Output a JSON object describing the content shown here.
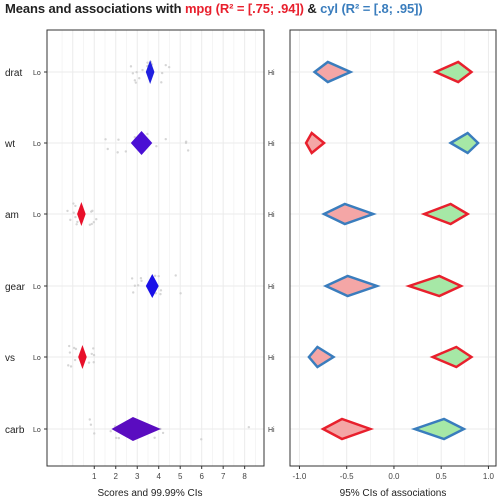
{
  "title": {
    "prefix": "Means and associations with ",
    "mpg_part": "mpg (R² = [.75; .94])",
    "joiner": " & ",
    "cyl_part": "cyl (R² = [.8; .95])"
  },
  "colors": {
    "mpg": "#e8202d",
    "cyl": "#3a7dbd",
    "mpg_fill": "#f4a6a6",
    "cyl_fill": "#a6e8a6",
    "grid": "#ebebeb",
    "points": "#cccccc"
  },
  "chart_data": [
    {
      "type": "scatter",
      "panel": "left",
      "xlabel": "Scores and 99.99% CIs",
      "xlim": [
        -1.2,
        8.9
      ],
      "x_ticks": [
        1,
        2,
        3,
        4,
        5,
        6,
        7,
        8
      ],
      "grid": true,
      "items": [
        {
          "label": "drat",
          "lo": "Lo",
          "hi": "Hi",
          "mean": 3.6,
          "ci": [
            3.4,
            3.8
          ],
          "color": "#2020e0"
        },
        {
          "label": "wt",
          "lo": "Lo",
          "hi": "Hi",
          "mean": 3.2,
          "ci": [
            2.7,
            3.7
          ],
          "color": "#4a0fd4"
        },
        {
          "label": "am",
          "lo": "Lo",
          "hi": "Hi",
          "mean": 0.4,
          "ci": [
            0.2,
            0.6
          ],
          "color": "#e8102a"
        },
        {
          "label": "gear",
          "lo": "Lo",
          "hi": "Hi",
          "mean": 3.7,
          "ci": [
            3.4,
            4.0
          ],
          "color": "#1a10e8"
        },
        {
          "label": "vs",
          "lo": "Lo",
          "hi": "Hi",
          "mean": 0.45,
          "ci": [
            0.25,
            0.65
          ],
          "color": "#e8102a"
        },
        {
          "label": "carb",
          "lo": "Lo",
          "hi": "Hi",
          "mean": 2.8,
          "ci": [
            1.8,
            4.1
          ],
          "color": "#5a0cc0"
        }
      ],
      "raw_points": {
        "drat": [
          2.8,
          2.9,
          3.0,
          3.1,
          3.2,
          3.2,
          3.4,
          3.5,
          3.6,
          3.7,
          3.8,
          3.9,
          3.9,
          4.1,
          4.2,
          4.4,
          3.1,
          3.5
        ],
        "wt": [
          1.5,
          1.8,
          2.2,
          2.3,
          2.6,
          2.9,
          3.2,
          3.2,
          3.4,
          3.5,
          3.6,
          3.8,
          4.1,
          5.3,
          5.4,
          5.3,
          3.4
        ],
        "am": [
          0,
          0,
          0,
          0,
          0,
          0,
          1,
          1,
          1,
          1,
          0,
          0,
          1,
          1
        ],
        "gear": [
          3,
          3,
          3,
          3,
          4,
          4,
          4,
          4,
          5,
          5,
          3,
          4,
          3,
          4
        ],
        "vs": [
          0,
          0,
          0,
          0,
          1,
          1,
          1,
          1,
          0,
          0,
          1,
          0
        ],
        "carb": [
          1,
          1,
          2,
          2,
          2,
          3,
          4,
          4,
          4,
          6,
          8,
          1,
          2
        ]
      }
    },
    {
      "type": "scatter",
      "panel": "right",
      "xlabel": "95% CIs of associations",
      "xlim": [
        -1.1,
        1.08
      ],
      "x_ticks": [
        -1.0,
        -0.5,
        0.0,
        0.5,
        1.0
      ],
      "x_tick_labels": [
        "-1.0",
        "-0.5",
        "0.0",
        "0.5",
        "1.0"
      ],
      "grid": true,
      "series": [
        {
          "name": "mpg",
          "items": [
            {
              "label": "drat",
              "estimate": 0.68,
              "ci": [
                0.44,
                0.82
              ]
            },
            {
              "label": "wt",
              "estimate": -0.87,
              "ci": [
                -0.93,
                -0.74
              ]
            },
            {
              "label": "am",
              "estimate": 0.6,
              "ci": [
                0.32,
                0.78
              ]
            },
            {
              "label": "gear",
              "estimate": 0.48,
              "ci": [
                0.16,
                0.71
              ]
            },
            {
              "label": "vs",
              "estimate": 0.66,
              "ci": [
                0.41,
                0.82
              ]
            },
            {
              "label": "carb",
              "estimate": -0.55,
              "ci": [
                -0.75,
                -0.25
              ]
            }
          ]
        },
        {
          "name": "cyl",
          "items": [
            {
              "label": "drat",
              "estimate": -0.7,
              "ci": [
                -0.84,
                -0.46
              ]
            },
            {
              "label": "wt",
              "estimate": 0.78,
              "ci": [
                0.6,
                0.89
              ]
            },
            {
              "label": "am",
              "estimate": -0.52,
              "ci": [
                -0.74,
                -0.22
              ]
            },
            {
              "label": "gear",
              "estimate": -0.49,
              "ci": [
                -0.72,
                -0.18
              ]
            },
            {
              "label": "vs",
              "estimate": -0.81,
              "ci": [
                -0.9,
                -0.64
              ]
            },
            {
              "label": "carb",
              "estimate": 0.53,
              "ci": [
                0.22,
                0.74
              ]
            }
          ]
        }
      ]
    }
  ]
}
